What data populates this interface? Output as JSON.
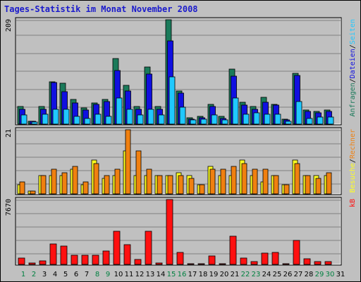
{
  "title": "Tages-Statistik im Monat November 2008",
  "colors": {
    "background": "#c0c0c0",
    "hits": "#1a7a5a",
    "files": "#1010e0",
    "pages": "#20c8ff",
    "visits": "#ffff20",
    "sites": "#f08010",
    "kbytes": "#ff1010",
    "weekend_day": "#008040",
    "weekday": "#000000"
  },
  "chart_data": [
    {
      "type": "bar",
      "title": "Tages-Statistik im Monat November 2008",
      "categories": [
        "1",
        "2",
        "3",
        "4",
        "5",
        "6",
        "7",
        "8",
        "9",
        "10",
        "11",
        "12",
        "13",
        "14",
        "15",
        "16",
        "17",
        "18",
        "19",
        "20",
        "21",
        "22",
        "23",
        "24",
        "25",
        "26",
        "27",
        "28",
        "29",
        "30",
        "31"
      ],
      "max_label": "209",
      "ylim": [
        0,
        209
      ],
      "right_legend": [
        "Anfragen",
        "/",
        "Dateien",
        "/",
        "Seiten"
      ],
      "series": [
        {
          "name": "Anfragen",
          "values": [
            35,
            5,
            35,
            85,
            82,
            50,
            32,
            42,
            50,
            132,
            78,
            36,
            115,
            36,
            209,
            66,
            13,
            15,
            40,
            15,
            110,
            44,
            36,
            54,
            40,
            10,
            102,
            28,
            25,
            28,
            0
          ]
        },
        {
          "name": "Dateien",
          "values": [
            30,
            5,
            30,
            83,
            65,
            42,
            28,
            40,
            45,
            108,
            66,
            30,
            100,
            30,
            166,
            62,
            10,
            13,
            35,
            12,
            96,
            38,
            30,
            44,
            38,
            8,
            97,
            25,
            22,
            25,
            0
          ]
        },
        {
          "name": "Seiten",
          "values": [
            18,
            4,
            20,
            30,
            30,
            16,
            12,
            20,
            16,
            52,
            30,
            18,
            30,
            18,
            95,
            34,
            8,
            10,
            18,
            8,
            52,
            20,
            22,
            20,
            20,
            6,
            45,
            12,
            14,
            14,
            0
          ]
        }
      ]
    },
    {
      "type": "bar",
      "categories": [
        "1",
        "2",
        "3",
        "4",
        "5",
        "6",
        "7",
        "8",
        "9",
        "10",
        "11",
        "12",
        "13",
        "14",
        "15",
        "16",
        "17",
        "18",
        "19",
        "20",
        "21",
        "22",
        "23",
        "24",
        "25",
        "26",
        "27",
        "28",
        "29",
        "30",
        "31"
      ],
      "max_label": "21",
      "ylim": [
        0,
        21
      ],
      "right_legend": [
        "Besuche",
        "/",
        "Rechner"
      ],
      "series": [
        {
          "name": "Besuche",
          "values": [
            3,
            1,
            6,
            6,
            6,
            8,
            3,
            11,
            5,
            6,
            14,
            6,
            6,
            6,
            6,
            7,
            6,
            3,
            9,
            6,
            6,
            11,
            6,
            4,
            6,
            3,
            11,
            6,
            6,
            6,
            0
          ]
        },
        {
          "name": "Rechner",
          "values": [
            4,
            1,
            6,
            8,
            7,
            9,
            4,
            10,
            6,
            8,
            21,
            14,
            8,
            6,
            6,
            6,
            5,
            3,
            8,
            8,
            9,
            10,
            8,
            8,
            6,
            3,
            10,
            6,
            5,
            7,
            0
          ]
        }
      ]
    },
    {
      "type": "bar",
      "categories": [
        "1",
        "2",
        "3",
        "4",
        "5",
        "6",
        "7",
        "8",
        "9",
        "10",
        "11",
        "12",
        "13",
        "14",
        "15",
        "16",
        "17",
        "18",
        "19",
        "20",
        "21",
        "22",
        "23",
        "24",
        "25",
        "26",
        "27",
        "28",
        "29",
        "30",
        "31"
      ],
      "max_label": "7670",
      "ylim": [
        0,
        7670
      ],
      "right_legend": [
        "kB"
      ],
      "series": [
        {
          "name": "kB",
          "values": [
            750,
            150,
            400,
            2450,
            2200,
            1100,
            1100,
            1100,
            1600,
            3950,
            2300,
            550,
            3950,
            150,
            7670,
            1400,
            100,
            100,
            1000,
            100,
            3350,
            750,
            300,
            1300,
            1450,
            100,
            2800,
            700,
            300,
            350,
            0
          ]
        }
      ]
    }
  ],
  "days": {
    "labels": [
      "1",
      "2",
      "3",
      "4",
      "5",
      "6",
      "7",
      "8",
      "9",
      "10",
      "11",
      "12",
      "13",
      "14",
      "15",
      "16",
      "17",
      "18",
      "19",
      "20",
      "21",
      "22",
      "23",
      "24",
      "25",
      "26",
      "27",
      "28",
      "29",
      "30",
      "31"
    ],
    "weekend": [
      "1",
      "2",
      "8",
      "9",
      "15",
      "16",
      "22",
      "23",
      "29",
      "30"
    ]
  }
}
